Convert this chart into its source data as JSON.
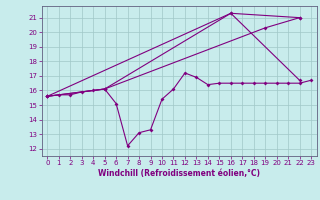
{
  "title": "",
  "xlabel": "Windchill (Refroidissement éolien,°C)",
  "ylabel": "",
  "bg_color": "#c8ecec",
  "line_color": "#800080",
  "grid_color": "#a0c8c8",
  "xlim": [
    -0.5,
    23.5
  ],
  "ylim": [
    11.5,
    21.8
  ],
  "yticks": [
    12,
    13,
    14,
    15,
    16,
    17,
    18,
    19,
    20,
    21
  ],
  "xticks": [
    0,
    1,
    2,
    3,
    4,
    5,
    6,
    7,
    8,
    9,
    10,
    11,
    12,
    13,
    14,
    15,
    16,
    17,
    18,
    19,
    20,
    21,
    22,
    23
  ],
  "series1_x": [
    0,
    1,
    2,
    3,
    4,
    5,
    6,
    7,
    8,
    9,
    10,
    11,
    12,
    13,
    14,
    15,
    16,
    17,
    18,
    19,
    20,
    21,
    22,
    23
  ],
  "series1_y": [
    15.6,
    15.7,
    15.7,
    15.9,
    16.0,
    16.1,
    15.1,
    12.2,
    13.1,
    13.3,
    15.4,
    16.1,
    17.2,
    16.9,
    16.4,
    16.5,
    16.5,
    16.5,
    16.5,
    16.5,
    16.5,
    16.5,
    16.5,
    16.7
  ],
  "series2_x": [
    0,
    5,
    16,
    22
  ],
  "series2_y": [
    15.6,
    16.1,
    21.3,
    21.0
  ],
  "series3_x": [
    0,
    5,
    19,
    22
  ],
  "series3_y": [
    15.6,
    16.1,
    20.3,
    21.0
  ],
  "series4_x": [
    0,
    16,
    22
  ],
  "series4_y": [
    15.6,
    21.3,
    16.7
  ],
  "font_size_ticks": 5.0,
  "font_size_xlabel": 5.5,
  "spine_color": "#606080",
  "marker_size": 2.0,
  "line_width": 0.8
}
